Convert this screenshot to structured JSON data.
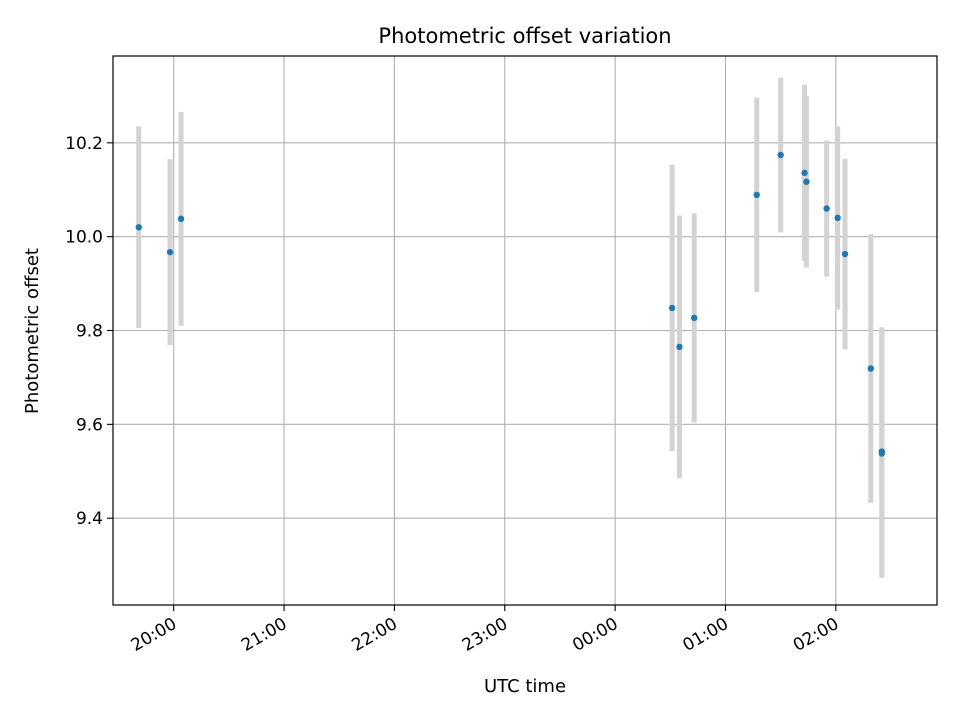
{
  "chart_data": {
    "type": "scatter",
    "title": "Photometric offset variation",
    "xlabel": "UTC time",
    "ylabel": "Photometric offset",
    "x_axis": {
      "kind": "time",
      "base_date": "",
      "range": [
        "19:27",
        "02:55"
      ],
      "ticks": [
        "20:00",
        "21:00",
        "22:00",
        "23:00",
        "00:00",
        "01:00",
        "02:00"
      ]
    },
    "y_axis": {
      "range": [
        9.215,
        10.385
      ],
      "ticks": [
        "9.4",
        "9.6",
        "9.8",
        "10.0",
        "10.2"
      ]
    },
    "grid": true,
    "legend": "none",
    "colors": {
      "point": "#1f77b4",
      "errorbar": "#d3d3d3",
      "grid": "#b0b0b0"
    },
    "series": [
      {
        "points": [
          {
            "t": "19:41",
            "y": 10.02,
            "err": 0.215
          },
          {
            "t": "19:58",
            "y": 9.967,
            "err": 0.198
          },
          {
            "t": "20:04",
            "y": 10.038,
            "err": 0.228
          },
          {
            "t": "00:31",
            "y": 9.848,
            "err": 0.305
          },
          {
            "t": "00:35",
            "y": 9.765,
            "err": 0.28
          },
          {
            "t": "00:43",
            "y": 9.827,
            "err": 0.223
          },
          {
            "t": "01:17",
            "y": 10.089,
            "err": 0.207
          },
          {
            "t": "01:30",
            "y": 10.174,
            "err": 0.165
          },
          {
            "t": "01:43",
            "y": 10.136,
            "err": 0.188
          },
          {
            "t": "01:44",
            "y": 10.117,
            "err": 0.183
          },
          {
            "t": "01:55",
            "y": 10.06,
            "err": 0.145
          },
          {
            "t": "02:01",
            "y": 10.04,
            "err": 0.195
          },
          {
            "t": "02:05",
            "y": 9.963,
            "err": 0.203
          },
          {
            "t": "02:19",
            "y": 9.719,
            "err": 0.286
          },
          {
            "t": "02:25",
            "y": 9.542,
            "err": 0.265
          },
          {
            "t": "02:25",
            "y": 9.538,
            "err": 0.265
          }
        ]
      }
    ]
  }
}
